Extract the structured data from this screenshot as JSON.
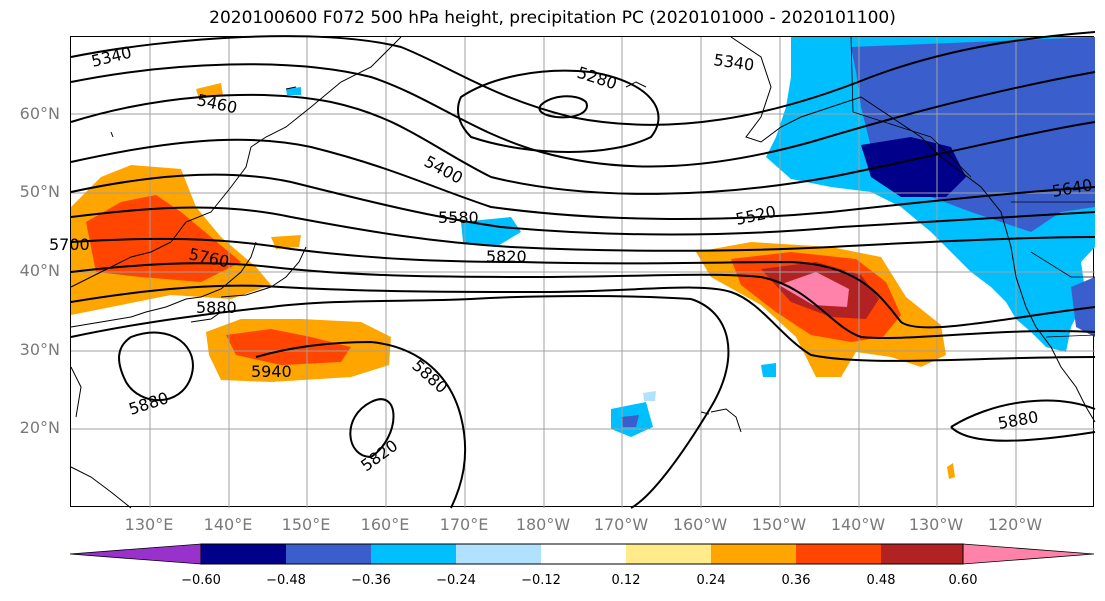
{
  "title": "2020100600 F072 500 hPa height, precipitation PC (2020101000 - 2020101100)",
  "latitude_labels": [
    "60°N",
    "50°N",
    "40°N",
    "30°N",
    "20°N"
  ],
  "longitude_labels": [
    "130°E",
    "140°E",
    "150°E",
    "160°E",
    "170°E",
    "180°W",
    "170°W",
    "160°W",
    "150°W",
    "140°W",
    "130°W",
    "120°W"
  ],
  "contour_labels": [
    "5340",
    "5460",
    "5280",
    "5340",
    "5400",
    "5580",
    "5520",
    "5640",
    "5700",
    "5760",
    "5820",
    "5880",
    "5940",
    "5880",
    "5880",
    "5820",
    "5880"
  ],
  "colorbar": {
    "colors": [
      "#9932cc",
      "#00008b",
      "#3a5fcd",
      "#00bfff",
      "#b0e2ff",
      "#ffffff",
      "#ffeb8a",
      "#ffa500",
      "#ff4500",
      "#b22222",
      "#ff82ab"
    ],
    "tick_labels": [
      "−0.60",
      "−0.48",
      "−0.36",
      "−0.24",
      "−0.12",
      "0.12",
      "0.24",
      "0.36",
      "0.48",
      "0.60"
    ]
  }
}
